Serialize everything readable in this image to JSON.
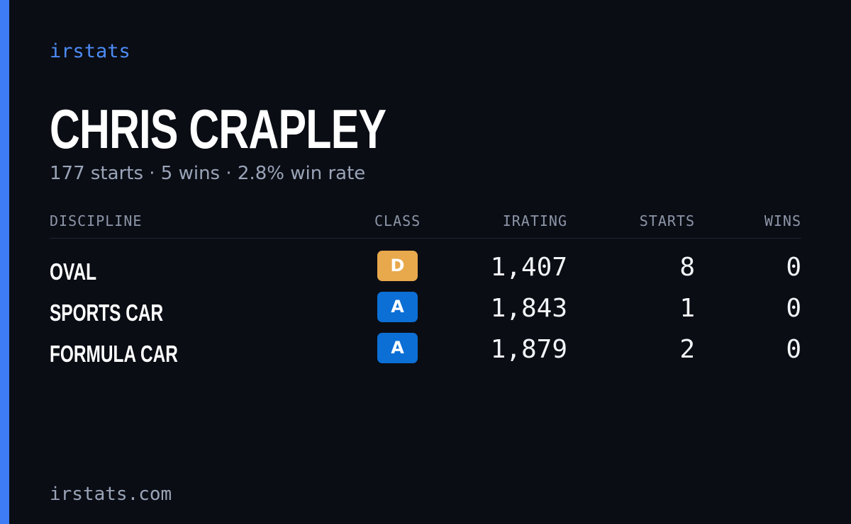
{
  "brand": "irstats",
  "driver": {
    "name": "CHRIS CRAPLEY",
    "summary": "177 starts · 5 wins · 2.8% win rate"
  },
  "table": {
    "headers": {
      "discipline": "DISCIPLINE",
      "class": "CLASS",
      "irating": "IRATING",
      "starts": "STARTS",
      "wins": "WINS"
    },
    "rows": [
      {
        "discipline": "OVAL",
        "class": "D",
        "class_color": "#e8a84c",
        "irating": "1,407",
        "starts": "8",
        "wins": "0"
      },
      {
        "discipline": "SPORTS CAR",
        "class": "A",
        "class_color": "#0c6fd6",
        "irating": "1,843",
        "starts": "1",
        "wins": "0"
      },
      {
        "discipline": "FORMULA CAR",
        "class": "A",
        "class_color": "#0c6fd6",
        "irating": "1,879",
        "starts": "2",
        "wins": "0"
      }
    ]
  },
  "footer": "irstats.com",
  "colors": {
    "background": "#0a0d14",
    "accent": "#3d7cf4",
    "brand": "#4d8bf5",
    "muted": "#9aa4b8"
  }
}
